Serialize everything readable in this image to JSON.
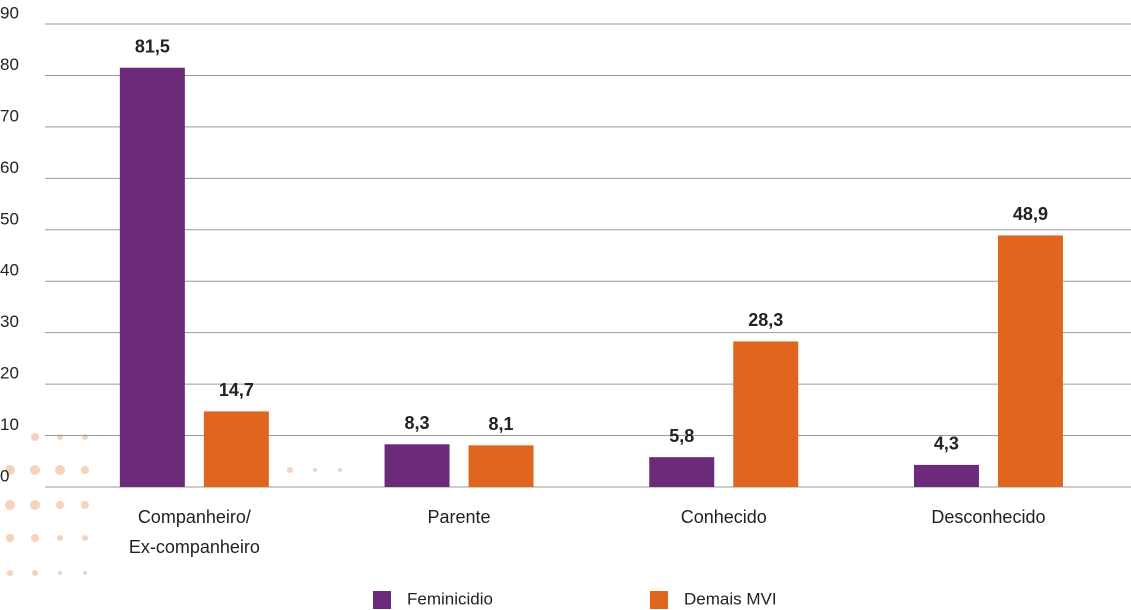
{
  "chart_data": {
    "type": "bar",
    "categories": [
      "Companheiro/\nEx-companheiro",
      "Parente",
      "Conhecido",
      "Desconhecido"
    ],
    "series": [
      {
        "name": "Feminicidio",
        "color": "#6b2a7a",
        "values": [
          81.5,
          8.3,
          5.8,
          4.3
        ],
        "value_labels": [
          "81,5",
          "8,3",
          "5,8",
          "4,3"
        ]
      },
      {
        "name": "Demais MVI",
        "color": "#e0661f",
        "values": [
          14.7,
          8.1,
          28.3,
          48.9
        ],
        "value_labels": [
          "14,7",
          "8,1",
          "28,3",
          "48,9"
        ]
      }
    ],
    "ylim": [
      0,
      90
    ],
    "yticks": [
      0,
      10,
      20,
      30,
      40,
      50,
      60,
      70,
      80,
      90
    ],
    "grid": true
  }
}
